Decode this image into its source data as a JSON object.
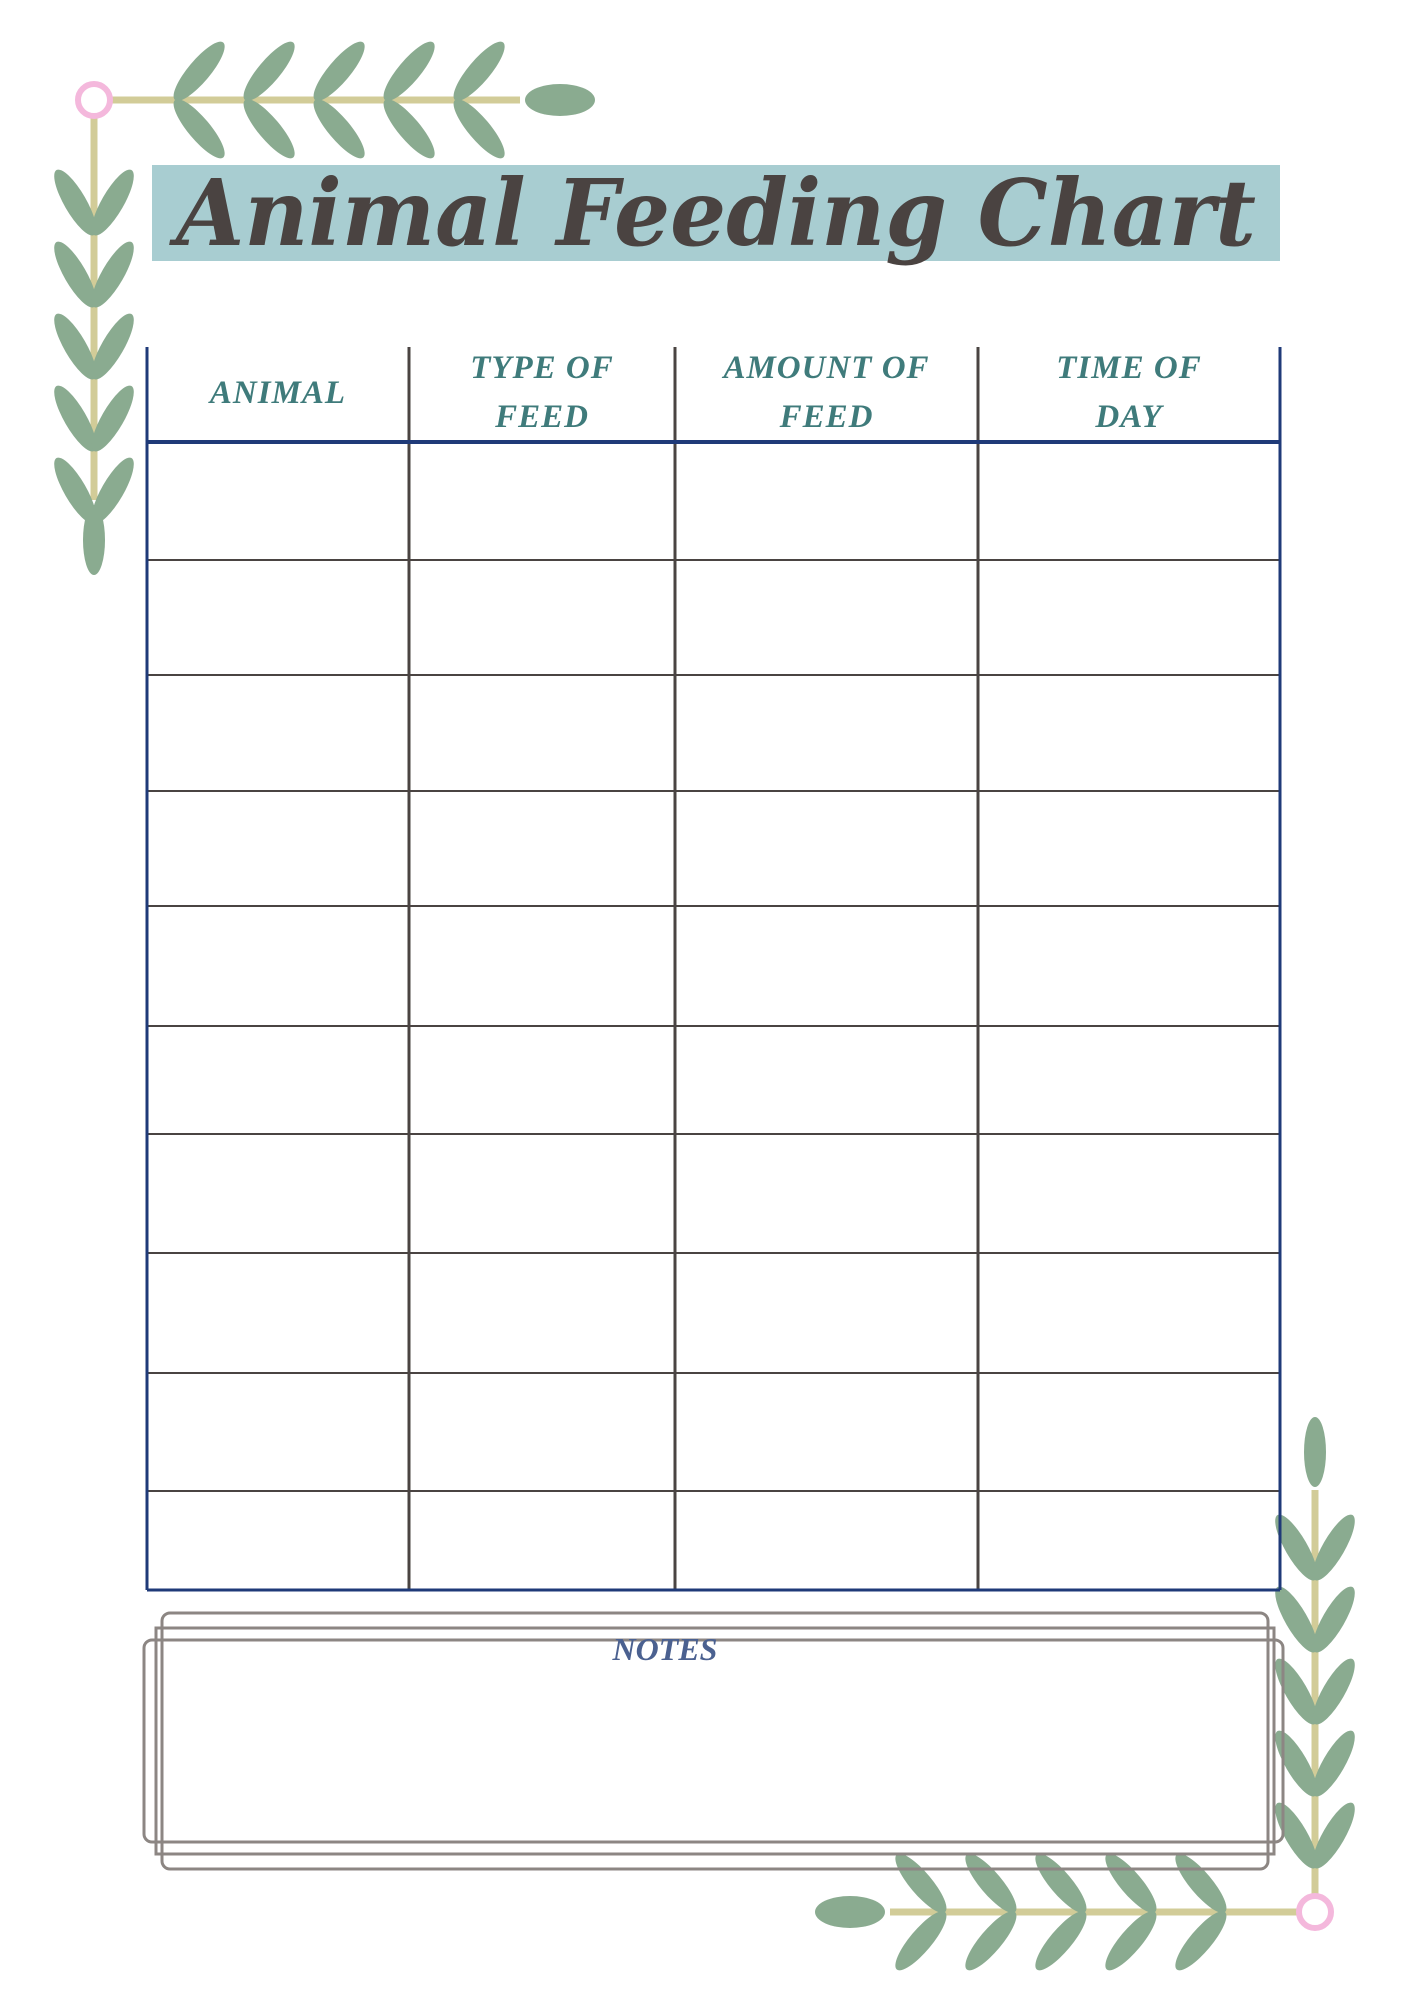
{
  "title": "Animal Feeding Chart",
  "colors": {
    "title_band": "#a8cdd1",
    "title_text": "#4a4341",
    "header_text": "#3f7b7b",
    "table_border": "#1f3a78",
    "grid": "#4a4442",
    "leaf": "#8aab90",
    "stem": "#d2cc98",
    "ring": "#f4b8dc",
    "notes_text": "#4b6190",
    "notes_frame": "#8c8683"
  },
  "table": {
    "headers": [
      {
        "line1": "ANIMAL",
        "line2": ""
      },
      {
        "line1": "TYPE OF",
        "line2": "FEED"
      },
      {
        "line1": "AMOUNT OF",
        "line2": "FEED"
      },
      {
        "line1": "TIME OF",
        "line2": "DAY"
      }
    ],
    "row_count": 10
  },
  "notes": {
    "label": "NOTES"
  },
  "decoration": {
    "icons": [
      "leaf-vine-top-left",
      "leaf-vine-bottom-right"
    ]
  }
}
